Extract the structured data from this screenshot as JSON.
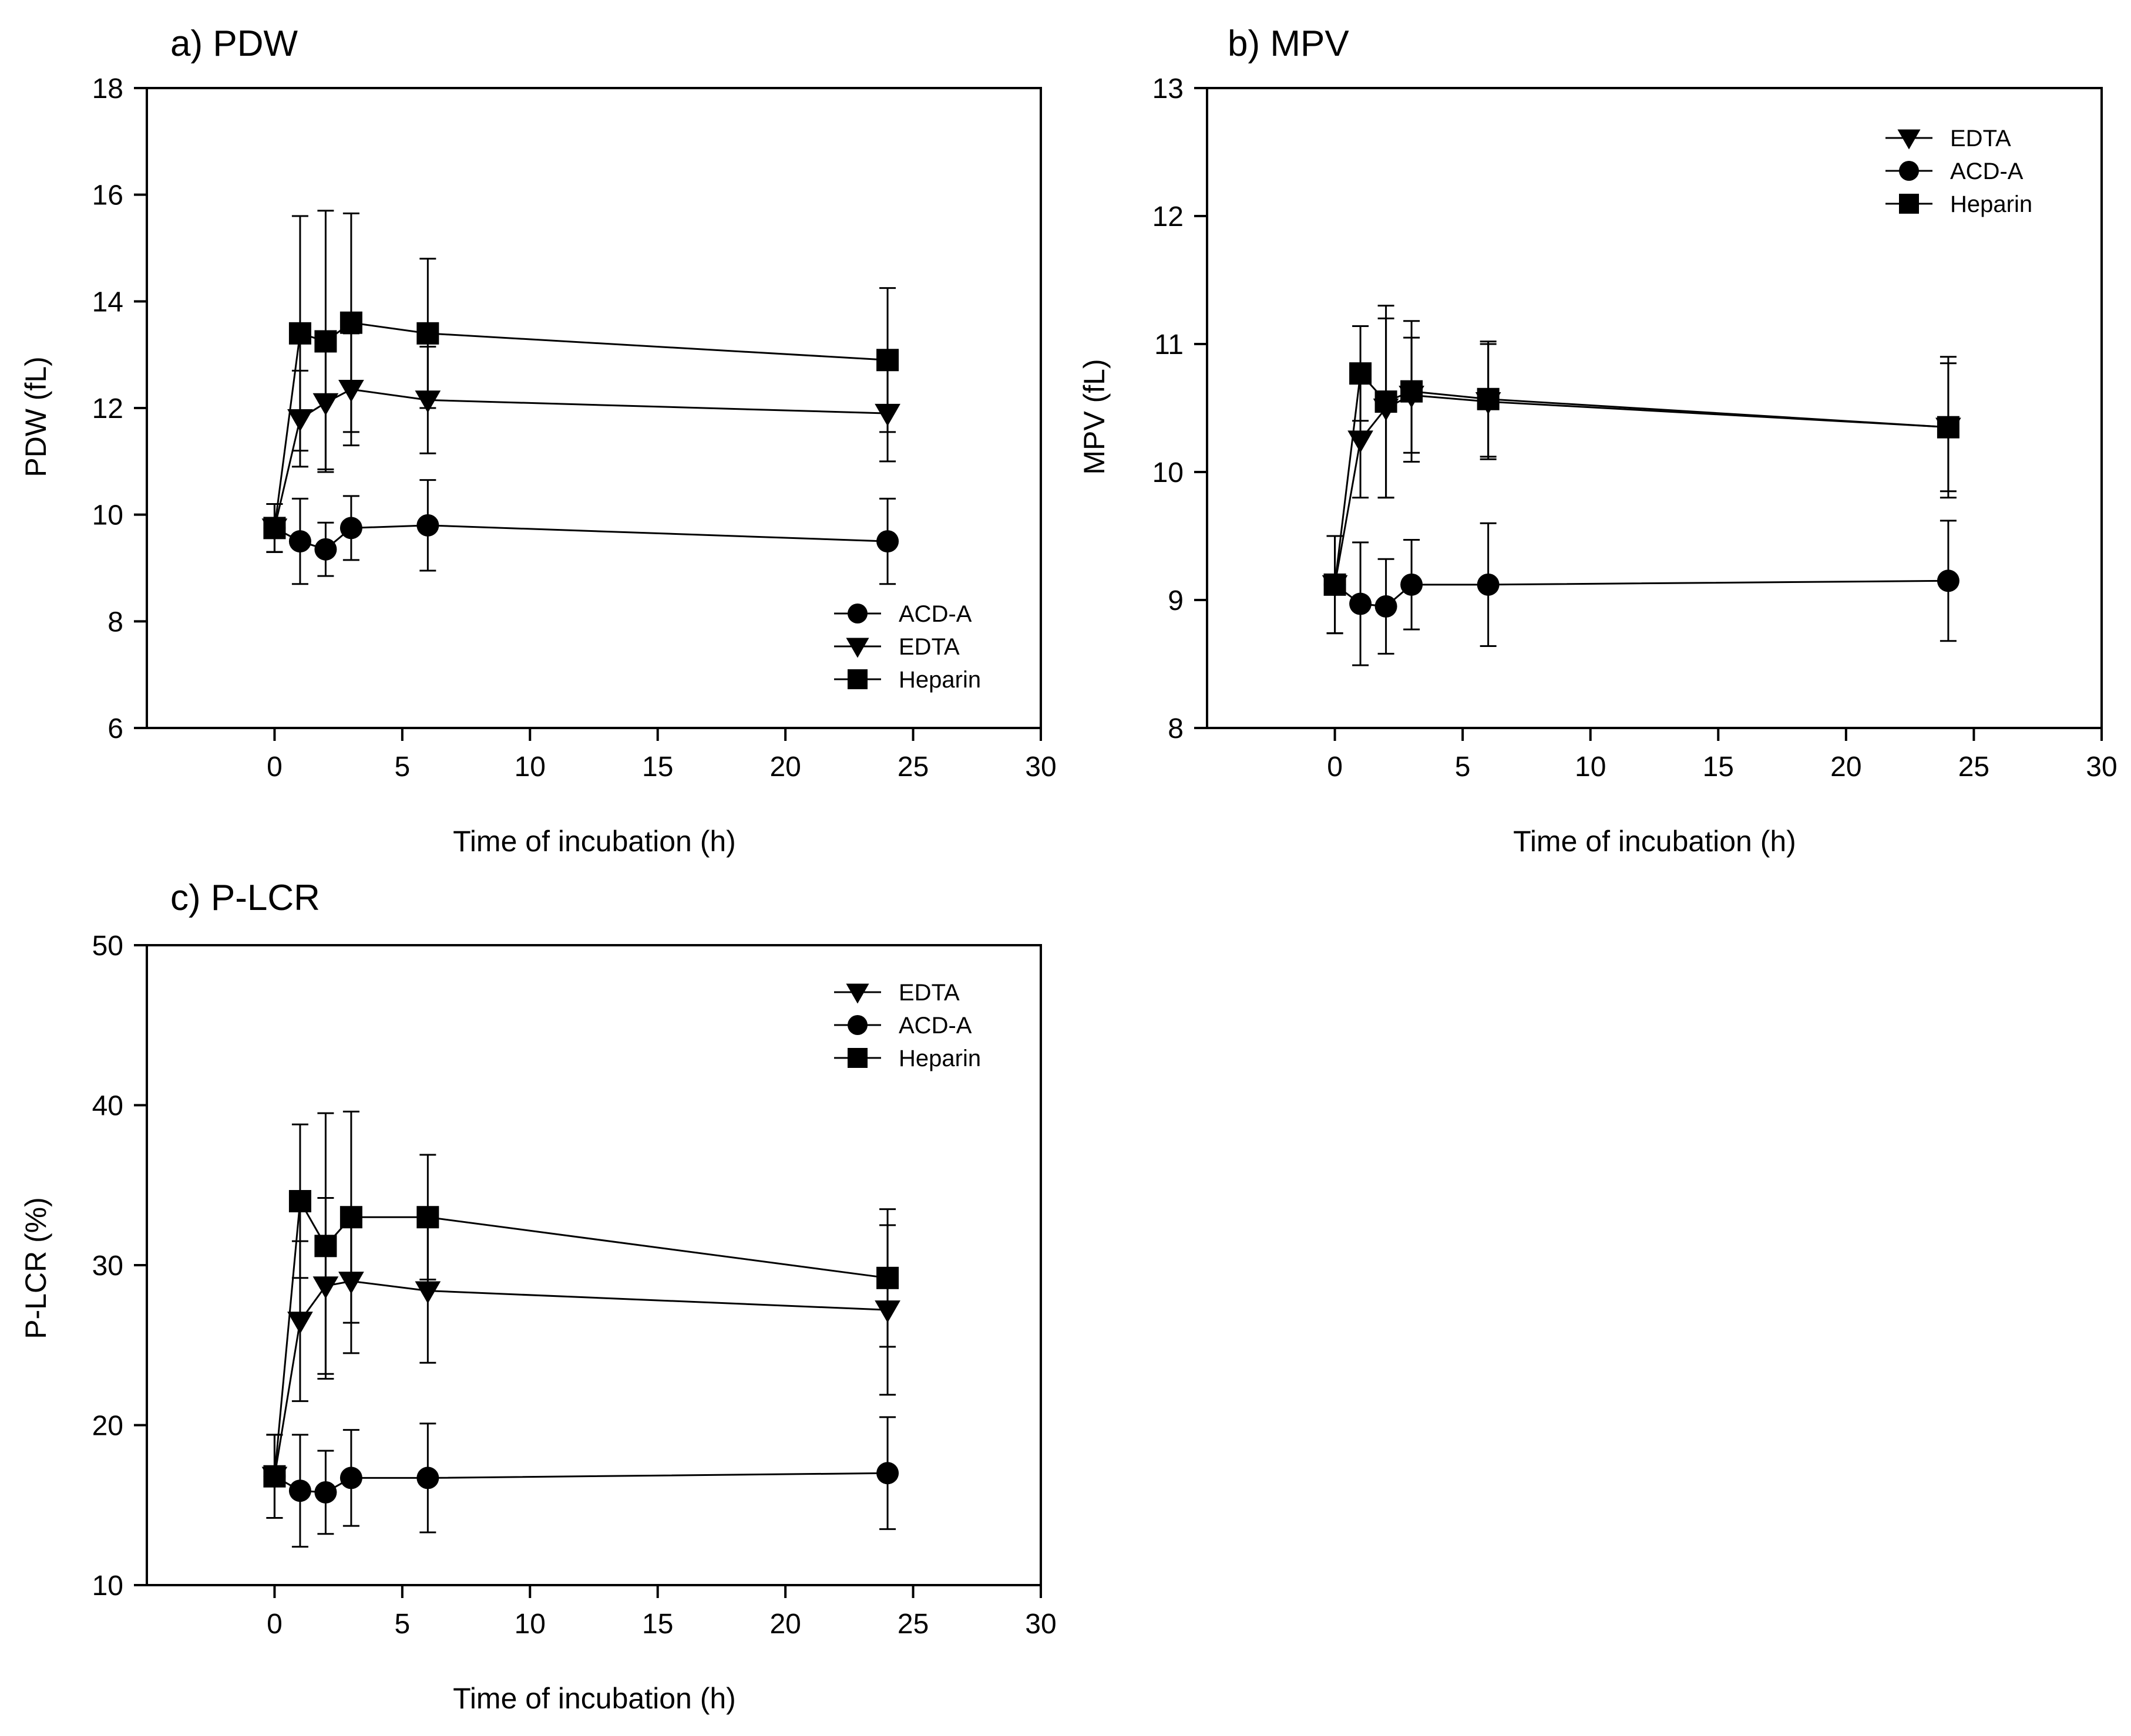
{
  "chart_data": [
    {
      "panel_title": "a) PDW",
      "type": "line",
      "xlabel": "Time of incubation (h)",
      "ylabel": "PDW (fL)",
      "xlim": [
        -5,
        30
      ],
      "ylim": [
        6,
        18
      ],
      "xticks": [
        0,
        5,
        10,
        15,
        20,
        25,
        30
      ],
      "yticks": [
        6,
        8,
        10,
        12,
        14,
        16,
        18
      ],
      "x": [
        0,
        1,
        2,
        3,
        6,
        24
      ],
      "legend_position": "bottom-right",
      "legend_order": [
        "ACD-A",
        "EDTA",
        "Heparin"
      ],
      "series": [
        {
          "name": "ACD-A",
          "marker": "circle",
          "values": [
            9.75,
            9.5,
            9.35,
            9.75,
            9.8,
            9.5
          ],
          "error": [
            0.45,
            0.8,
            0.5,
            0.6,
            0.85,
            0.8
          ]
        },
        {
          "name": "EDTA",
          "marker": "triangle-down",
          "values": [
            9.75,
            11.8,
            12.1,
            12.35,
            12.15,
            11.9
          ],
          "error": [
            0.45,
            0.9,
            1.25,
            1.05,
            1.0,
            0.9
          ]
        },
        {
          "name": "Heparin",
          "marker": "square",
          "values": [
            9.75,
            13.4,
            13.25,
            13.6,
            13.4,
            12.9
          ],
          "error": [
            0.45,
            2.2,
            2.45,
            2.05,
            1.4,
            1.35
          ]
        }
      ]
    },
    {
      "panel_title": "b) MPV",
      "type": "line",
      "xlabel": "Time of incubation (h)",
      "ylabel": "MPV (fL)",
      "xlim": [
        -5,
        30
      ],
      "ylim": [
        8,
        13
      ],
      "xticks": [
        0,
        5,
        10,
        15,
        20,
        25,
        30
      ],
      "yticks": [
        8,
        9,
        10,
        11,
        12,
        13
      ],
      "x": [
        0,
        1,
        2,
        3,
        6,
        24
      ],
      "legend_position": "top-right",
      "legend_order": [
        "EDTA",
        "ACD-A",
        "Heparin"
      ],
      "series": [
        {
          "name": "EDTA",
          "marker": "triangle-down",
          "values": [
            9.12,
            10.25,
            10.5,
            10.6,
            10.55,
            10.35
          ],
          "error": [
            0.38,
            0.45,
            0.7,
            0.45,
            0.45,
            0.5
          ]
        },
        {
          "name": "ACD-A",
          "marker": "circle",
          "values": [
            9.12,
            8.97,
            8.95,
            9.12,
            9.12,
            9.15
          ],
          "error": [
            0.38,
            0.48,
            0.37,
            0.35,
            0.48,
            0.47
          ]
        },
        {
          "name": "Heparin",
          "marker": "square",
          "values": [
            9.12,
            10.77,
            10.55,
            10.63,
            10.57,
            10.35
          ],
          "error": [
            0.38,
            0.37,
            0.75,
            0.55,
            0.45,
            0.55
          ]
        }
      ]
    },
    {
      "panel_title": "c) P-LCR",
      "type": "line",
      "xlabel": "Time of incubation (h)",
      "ylabel": "P-LCR (%)",
      "xlim": [
        -5,
        30
      ],
      "ylim": [
        10,
        50
      ],
      "xticks": [
        0,
        5,
        10,
        15,
        20,
        25,
        30
      ],
      "yticks": [
        10,
        20,
        30,
        40,
        50
      ],
      "x": [
        0,
        1,
        2,
        3,
        6,
        24
      ],
      "legend_position": "top-right",
      "legend_order": [
        "EDTA",
        "ACD-A",
        "Heparin"
      ],
      "series": [
        {
          "name": "EDTA",
          "marker": "triangle-down",
          "values": [
            16.8,
            26.5,
            28.7,
            29.0,
            28.4,
            27.2
          ],
          "error": [
            2.6,
            5.0,
            5.5,
            4.5,
            4.5,
            5.3
          ]
        },
        {
          "name": "ACD-A",
          "marker": "circle",
          "values": [
            16.8,
            15.9,
            15.8,
            16.7,
            16.7,
            17.0
          ],
          "error": [
            2.6,
            3.5,
            2.6,
            3.0,
            3.4,
            3.5
          ]
        },
        {
          "name": "Heparin",
          "marker": "square",
          "values": [
            16.8,
            34.0,
            31.2,
            33.0,
            33.0,
            29.2
          ],
          "error": [
            2.6,
            4.8,
            8.3,
            6.6,
            3.9,
            4.3
          ]
        }
      ]
    }
  ]
}
